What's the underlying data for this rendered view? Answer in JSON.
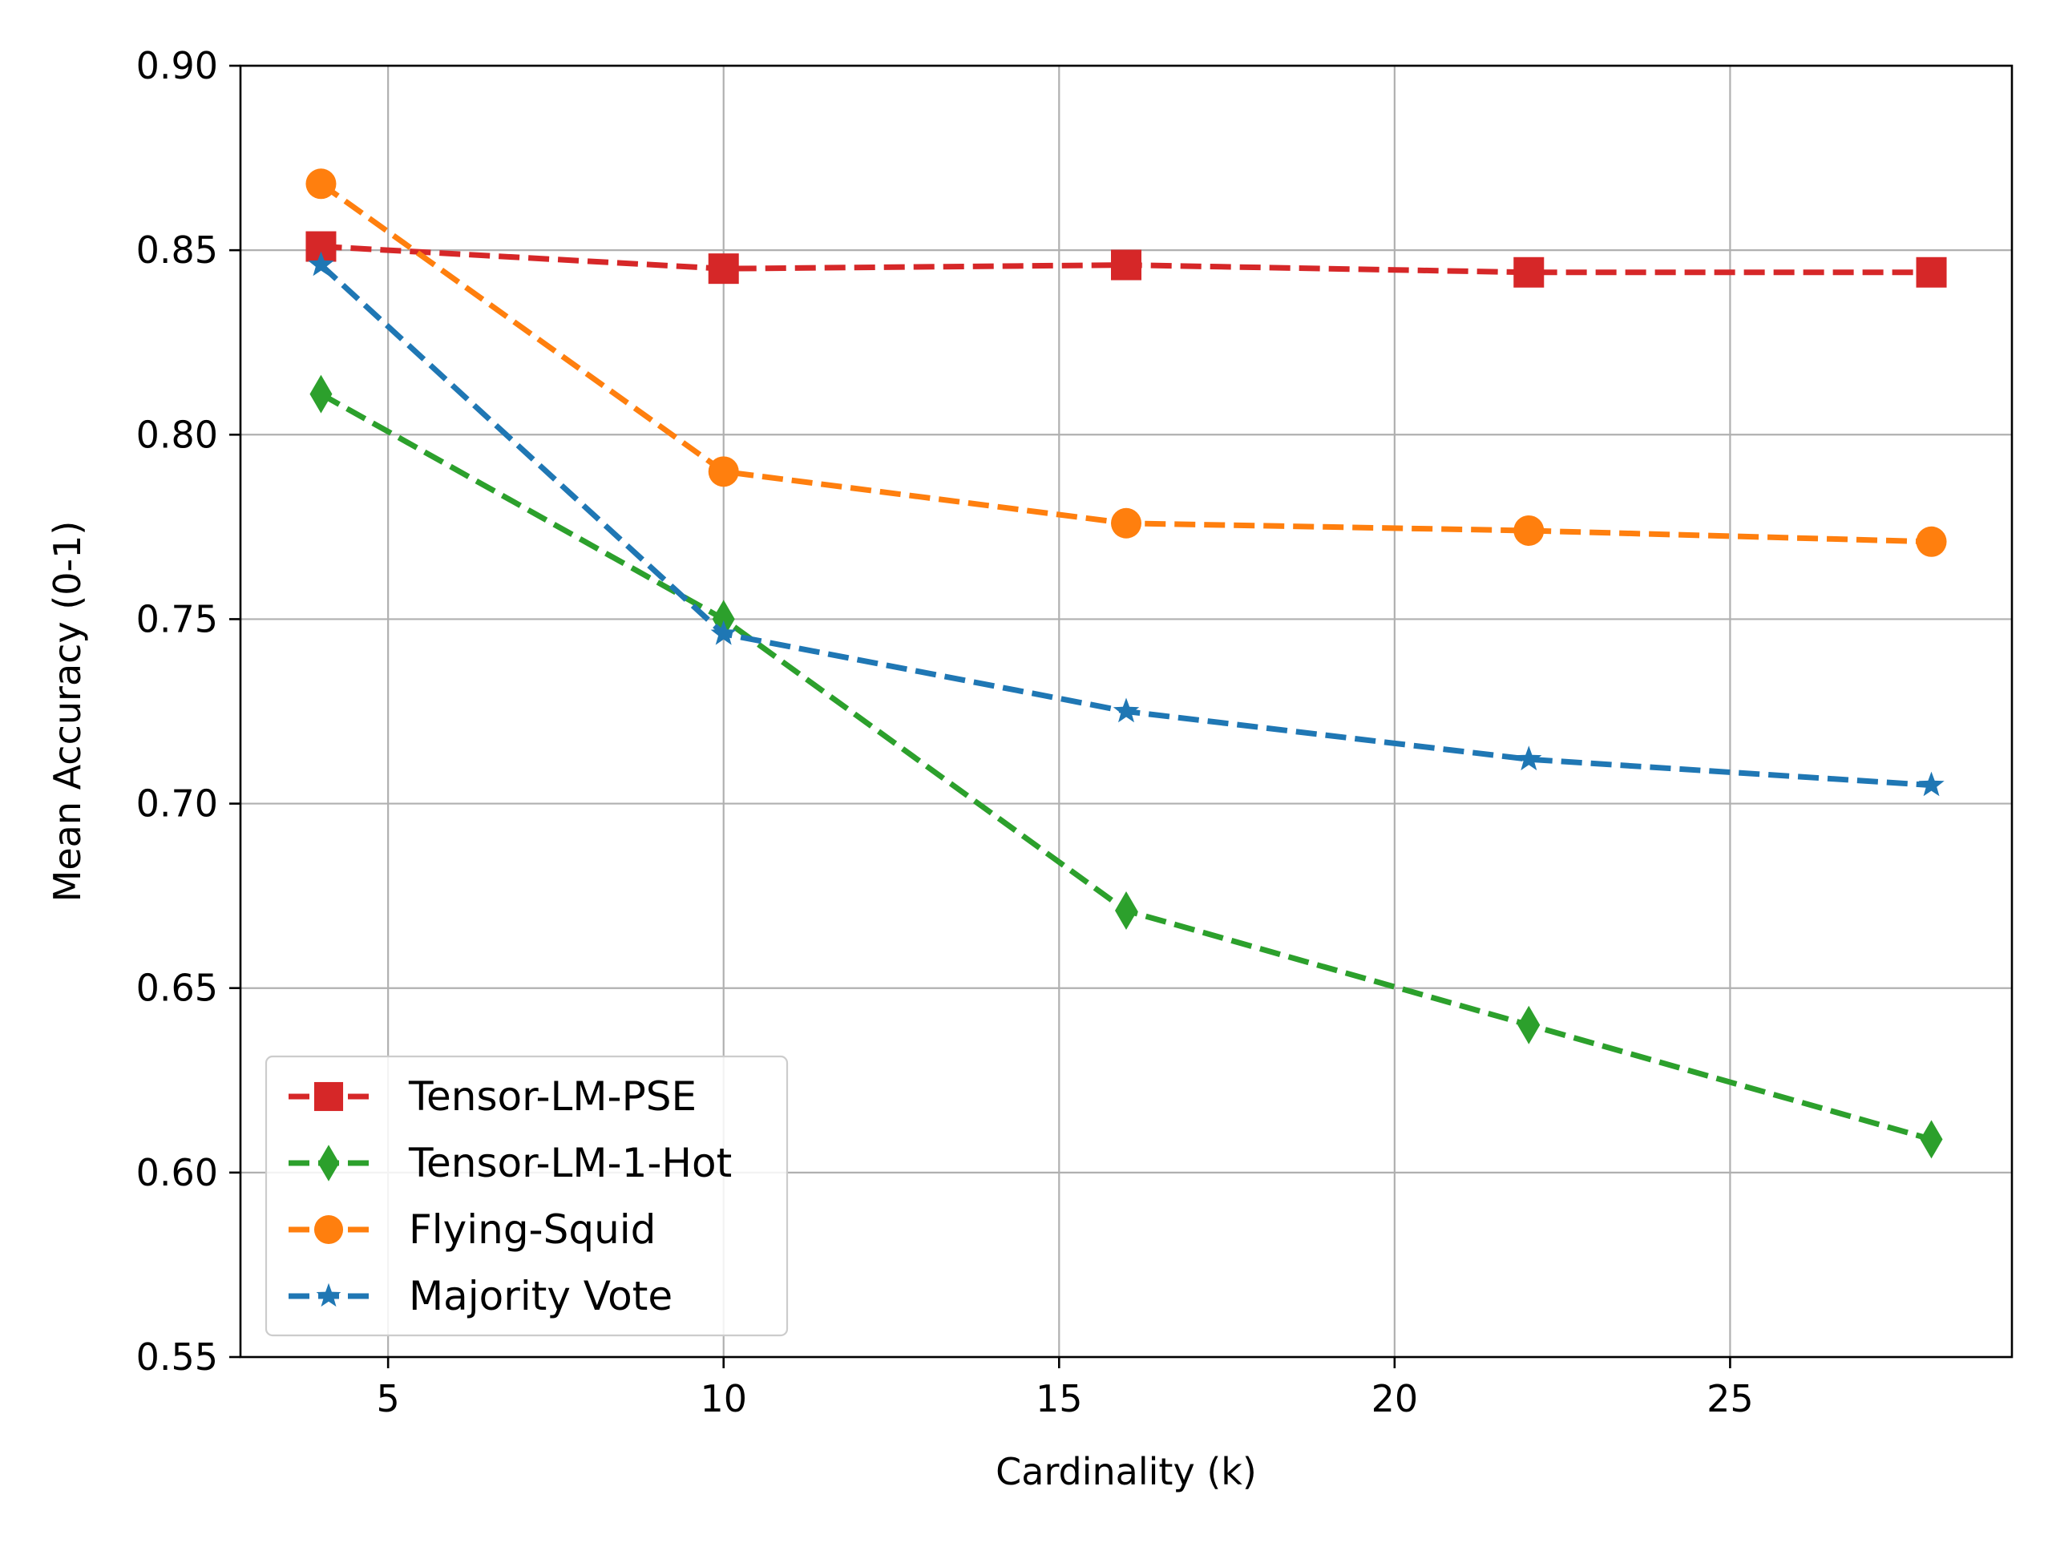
{
  "chart_data": {
    "type": "line",
    "title": "",
    "xlabel": "Cardinality (k)",
    "ylabel": "Mean Accuracy (0-1)",
    "xlim": [
      2.8,
      29.2
    ],
    "ylim": [
      0.55,
      0.9
    ],
    "xticks": [
      5,
      10,
      15,
      20,
      25
    ],
    "xtick_labels": [
      "5",
      "10",
      "15",
      "20",
      "25"
    ],
    "yticks": [
      0.55,
      0.6,
      0.65,
      0.7,
      0.75,
      0.8,
      0.85,
      0.9
    ],
    "ytick_labels": [
      "0.55",
      "0.60",
      "0.65",
      "0.70",
      "0.75",
      "0.80",
      "0.85",
      "0.90"
    ],
    "grid": true,
    "legend_position": "lower-left",
    "x": [
      4,
      10,
      16,
      22,
      28
    ],
    "series": [
      {
        "name": "Tensor-LM-PSE",
        "values": [
          0.851,
          0.845,
          0.846,
          0.844,
          0.844
        ],
        "color": "#d62728",
        "marker": "square",
        "line_style": "dashed"
      },
      {
        "name": "Tensor-LM-1-Hot",
        "values": [
          0.811,
          0.75,
          0.671,
          0.64,
          0.609
        ],
        "color": "#2ca02c",
        "marker": "thin-diamond",
        "line_style": "dashed"
      },
      {
        "name": "Flying-Squid",
        "values": [
          0.868,
          0.79,
          0.776,
          0.774,
          0.771
        ],
        "color": "#ff7f0e",
        "marker": "circle",
        "line_style": "dashed"
      },
      {
        "name": "Majority Vote",
        "values": [
          0.846,
          0.746,
          0.725,
          0.712,
          0.705
        ],
        "color": "#1f77b4",
        "marker": "star",
        "line_style": "dashed"
      }
    ]
  }
}
